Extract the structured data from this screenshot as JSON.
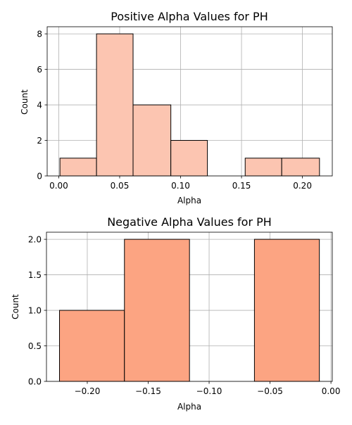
{
  "chart_data": [
    {
      "type": "bar",
      "title": "Positive Alpha Values for PH",
      "xlabel": "Alpha",
      "ylabel": "Count",
      "xlim": [
        -0.0095,
        0.2245
      ],
      "ylim": [
        0,
        8.4
      ],
      "xticks": [
        0.0,
        0.05,
        0.1,
        0.15,
        0.2
      ],
      "xtick_labels": [
        "0.00",
        "0.05",
        "0.10",
        "0.15",
        "0.20"
      ],
      "yticks": [
        0,
        2,
        4,
        6,
        8
      ],
      "ytick_labels": [
        "0",
        "2",
        "4",
        "6",
        "8"
      ],
      "grid": true,
      "bar_color": "#fcc5b1",
      "bins": [
        {
          "x0": 0.001,
          "x1": 0.031,
          "count": 1
        },
        {
          "x0": 0.031,
          "x1": 0.061,
          "count": 8
        },
        {
          "x0": 0.061,
          "x1": 0.092,
          "count": 4
        },
        {
          "x0": 0.092,
          "x1": 0.122,
          "count": 2
        },
        {
          "x0": 0.122,
          "x1": 0.153,
          "count": 0
        },
        {
          "x0": 0.153,
          "x1": 0.183,
          "count": 1
        },
        {
          "x0": 0.183,
          "x1": 0.214,
          "count": 1
        }
      ]
    },
    {
      "type": "bar",
      "title": "Negative Alpha Values for PH",
      "xlabel": "Alpha",
      "ylabel": "Count",
      "xlim": [
        -0.2335,
        0.0011
      ],
      "ylim": [
        0,
        2.1
      ],
      "xticks": [
        -0.2,
        -0.15,
        -0.1,
        -0.05,
        0.0
      ],
      "xtick_labels": [
        "−0.20",
        "−0.15",
        "−0.10",
        "−0.05",
        "0.00"
      ],
      "yticks": [
        0.0,
        0.5,
        1.0,
        1.5,
        2.0
      ],
      "ytick_labels": [
        "0.0",
        "0.5",
        "1.0",
        "1.5",
        "2.0"
      ],
      "grid": true,
      "bar_color": "#fca482",
      "bins": [
        {
          "x0": -0.2228,
          "x1": -0.1695,
          "count": 1
        },
        {
          "x0": -0.1695,
          "x1": -0.1161,
          "count": 2
        },
        {
          "x0": -0.1161,
          "x1": -0.0628,
          "count": 0
        },
        {
          "x0": -0.0628,
          "x1": -0.0095,
          "count": 2
        }
      ]
    }
  ]
}
